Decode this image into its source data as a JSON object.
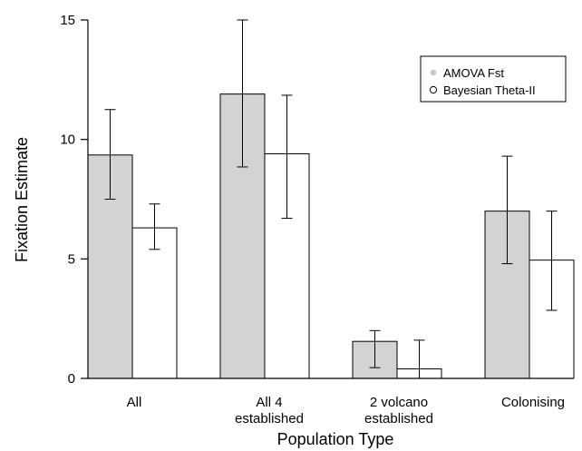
{
  "chart_data": {
    "type": "bar",
    "categories": [
      "All",
      "All 4\nestablished",
      "2 volcano\nestablished",
      "Colonising"
    ],
    "series": [
      {
        "name": "AMOVA Fst",
        "color": "#d3d3d3",
        "values": [
          9.35,
          11.9,
          1.55,
          7.0
        ],
        "error_low": [
          7.5,
          8.85,
          0.45,
          4.8
        ],
        "error_high": [
          11.25,
          15.0,
          2.0,
          9.3
        ]
      },
      {
        "name": "Bayesian Theta-II",
        "color": "#ffffff",
        "values": [
          6.3,
          9.4,
          0.4,
          4.95
        ],
        "error_low": [
          5.4,
          6.7,
          0.0,
          2.85
        ],
        "error_high": [
          7.3,
          11.85,
          1.6,
          7.0
        ]
      }
    ],
    "xlabel": "Population Type",
    "ylabel": "Fixation Estimate",
    "ylim": [
      0,
      15
    ],
    "yticks": [
      0,
      5,
      10,
      15
    ],
    "legend_position": "top-right",
    "grid": false
  }
}
